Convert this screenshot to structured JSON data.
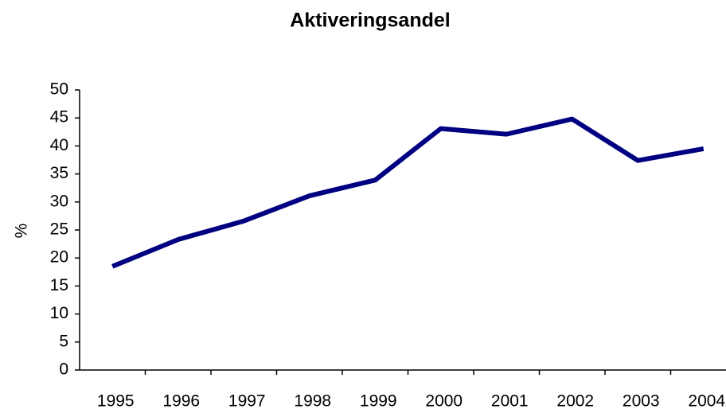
{
  "chart_data": {
    "type": "line",
    "title": "Aktiveringsandel",
    "y_label": "%",
    "categories": [
      "1995",
      "1996",
      "1997",
      "1998",
      "1999",
      "2000",
      "2001",
      "2002",
      "2003",
      "2004"
    ],
    "series": [
      {
        "name": "Aktiveringsandel",
        "color": "#000080",
        "values": [
          18.5,
          23.3,
          26.6,
          31.1,
          33.9,
          43.1,
          42.1,
          44.8,
          37.4,
          39.5
        ]
      }
    ],
    "ylim": [
      0,
      50
    ],
    "yticks": [
      0,
      5,
      10,
      15,
      20,
      25,
      30,
      35,
      40,
      45,
      50
    ],
    "grid": false
  }
}
